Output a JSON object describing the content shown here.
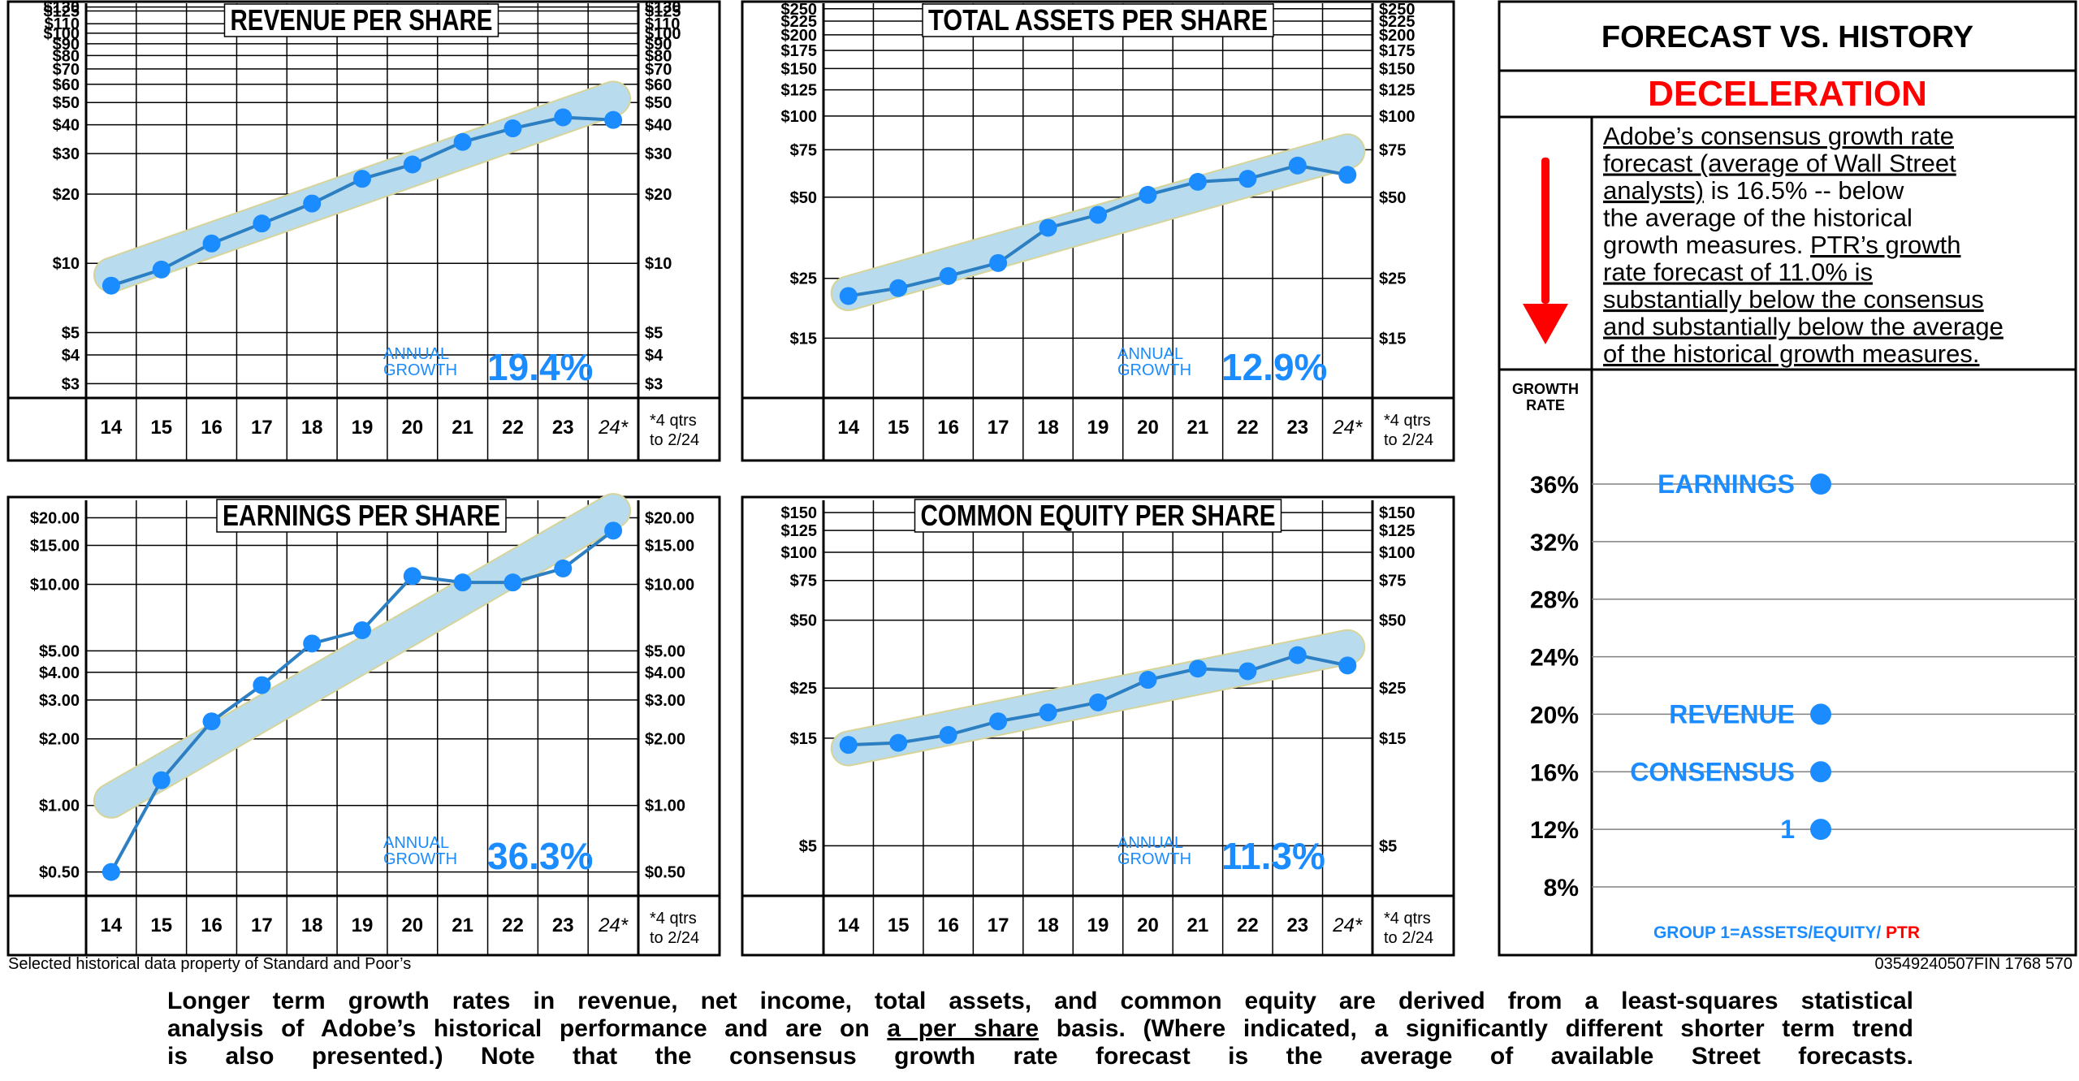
{
  "chart_data": [
    {
      "type": "line",
      "title": "REVENUE PER SHARE",
      "scale": "log",
      "categories": [
        "14",
        "15",
        "16",
        "17",
        "18",
        "19",
        "20",
        "21",
        "22",
        "23",
        "24*"
      ],
      "values": [
        8.0,
        9.4,
        12.2,
        14.9,
        18.2,
        23.3,
        26.9,
        33.7,
        38.6,
        43.1,
        42.0
      ],
      "ylim": [
        2.6,
        135
      ],
      "ytick_labels": [
        "$130",
        "$125",
        "$110",
        "$100",
        "$90",
        "$80",
        "$70",
        "$60",
        "$50",
        "$40",
        "$30",
        "$20",
        "$10",
        "$5",
        "$4",
        "$3"
      ],
      "trend": [
        8.9,
        52.0
      ],
      "growth_label": "ANNUAL\nGROWTH",
      "growth_value": "19.4%",
      "footnote": "*4 qtrs\nto 2/24"
    },
    {
      "type": "line",
      "title": "TOTAL ASSETS PER SHARE",
      "scale": "log",
      "categories": [
        "14",
        "15",
        "16",
        "17",
        "18",
        "19",
        "20",
        "21",
        "22",
        "23",
        "24*"
      ],
      "values": [
        21.5,
        23.0,
        25.5,
        28.5,
        38.5,
        43.0,
        51.0,
        57.0,
        58.5,
        65.5,
        60.5
      ],
      "ylim": [
        9,
        262
      ],
      "ytick_labels": [
        "$250",
        "$225",
        "$200",
        "$175",
        "$150",
        "$125",
        "$100",
        "$75",
        "$50",
        "$25",
        "$15"
      ],
      "trend": [
        22.0,
        74.0
      ],
      "growth_label": "ANNUAL\nGROWTH",
      "growth_value": "12.9%",
      "footnote": "*4 qtrs\nto 2/24"
    },
    {
      "type": "line",
      "title": "EARNINGS PER SHARE",
      "scale": "log",
      "categories": [
        "14",
        "15",
        "16",
        "17",
        "18",
        "19",
        "20",
        "21",
        "22",
        "23",
        "24*"
      ],
      "values": [
        0.5,
        1.3,
        2.4,
        3.5,
        5.4,
        6.2,
        10.9,
        10.2,
        10.2,
        11.8,
        17.5
      ],
      "ylim": [
        0.39,
        24
      ],
      "ytick_labels": [
        "$20.00",
        "$15.00",
        "$10.00",
        "$5.00",
        "$4.00",
        "$3.00",
        "$2.00",
        "$1.00",
        "$0.50"
      ],
      "trend": [
        1.05,
        21.5
      ],
      "growth_label": "ANNUAL\nGROWTH",
      "growth_value": "36.3%",
      "footnote": "*4 qtrs\nto 2/24"
    },
    {
      "type": "line",
      "title": "COMMON EQUITY PER SHARE",
      "scale": "log",
      "categories": [
        "14",
        "15",
        "16",
        "17",
        "18",
        "19",
        "20",
        "21",
        "22",
        "23",
        "24*"
      ],
      "values": [
        14.0,
        14.3,
        15.5,
        17.8,
        19.5,
        21.6,
        27.2,
        30.5,
        29.7,
        35.0,
        31.5
      ],
      "ylim": [
        3.0,
        170
      ],
      "ytick_labels": [
        "$150",
        "$125",
        "$100",
        "$75",
        "$50",
        "$25",
        "$15",
        "$5"
      ],
      "trend": [
        13.5,
        38.0
      ],
      "growth_label": "ANNUAL\nGROWTH",
      "growth_value": "11.3%",
      "footnote": "*4 qtrs\nto 2/24"
    },
    {
      "type": "scatter",
      "title": "FORECAST VS. HISTORY",
      "subtitle": "DECELERATION",
      "ylabel": "GROWTH\nRATE",
      "yticks": [
        36,
        32,
        28,
        24,
        20,
        16,
        12,
        8
      ],
      "ytick_labels": [
        "36%",
        "32%",
        "28%",
        "24%",
        "20%",
        "16%",
        "12%",
        "8%"
      ],
      "ylim": [
        5.5,
        39.5
      ],
      "points": [
        {
          "label": "EARNINGS",
          "value": 36.0
        },
        {
          "label": "REVENUE",
          "value": 20.0
        },
        {
          "label": "CONSENSUS",
          "value": 16.0
        },
        {
          "label": "1",
          "value": 12.0
        }
      ],
      "legend": "GROUP 1=ASSETS/EQUITY/",
      "legend_ptr": "PTR"
    }
  ],
  "forecast": {
    "text_lines": [
      {
        "parts": [
          {
            "t": "Adobe’s consensus growth rate",
            "u": true
          }
        ]
      },
      {
        "parts": [
          {
            "t": "forecast (average of Wall Street",
            "u": true
          }
        ]
      },
      {
        "parts": [
          {
            "t": "analysts)",
            "u": true
          },
          {
            "t": " is 16.5% --   below",
            "u": false
          }
        ]
      },
      {
        "parts": [
          {
            "t": "the average of the historical",
            "u": false
          }
        ]
      },
      {
        "parts": [
          {
            "t": "growth measures.  ",
            "u": false
          },
          {
            "t": "PTR’s growth",
            "u": true
          }
        ]
      },
      {
        "parts": [
          {
            "t": "rate forecast of 11.0% is",
            "u": true
          }
        ]
      },
      {
        "parts": [
          {
            "t": "substantially below the consensus",
            "u": true
          }
        ]
      },
      {
        "parts": [
          {
            "t": "and substantially below the average",
            "u": true
          }
        ]
      },
      {
        "parts": [
          {
            "t": "of the historical growth measures.",
            "u": true
          }
        ]
      }
    ]
  },
  "notes": {
    "source": "Selected historical data property of Standard and Poor’s",
    "code": "03549240507FIN 1768 570"
  },
  "footer": {
    "lines": [
      "Longer term growth rates in revenue, net income, total assets, and common equity are derived from a least-squares  statistical",
      "is also presented.) Note that the consensus growth rate forecast is the average of available Street forecasts."
    ],
    "line2_before": "analysis of Adobe’s historical performance and are on ",
    "line2_underline": "a per share",
    "line2_after": " basis. (Where indicated, a significantly different shorter term trend"
  },
  "colors": {
    "line": "#2b7fc2",
    "dot": "#1a8cff",
    "band": "#b7dcf2",
    "band_edge": "#d7d49a",
    "growth_text": "#1a8cff",
    "deceleration": "#ff0000",
    "arrow": "#ff0000",
    "grid": "#000000"
  }
}
